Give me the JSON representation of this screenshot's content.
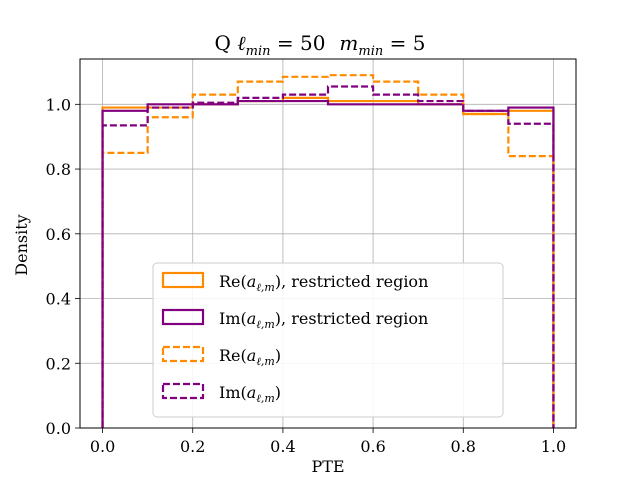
{
  "chart_data": {
    "type": "histogram",
    "title": "Q ℓ_min = 50   m_min = 5",
    "title_parts": {
      "prefix": "Q ",
      "l_symbol": "ℓ",
      "m_symbol": "m",
      "sub": "min",
      "eq": " = ",
      "l_value": "50",
      "m_value": "5"
    },
    "xlabel": "PTE",
    "ylabel": "Density",
    "xlim": [
      -0.05,
      1.05
    ],
    "ylim": [
      0.0,
      1.14
    ],
    "xticks": [
      0.0,
      0.2,
      0.4,
      0.6,
      0.8,
      1.0
    ],
    "xtick_labels": [
      "0.0",
      "0.2",
      "0.4",
      "0.6",
      "0.8",
      "1.0"
    ],
    "yticks": [
      0.0,
      0.2,
      0.4,
      0.6,
      0.8,
      1.0
    ],
    "ytick_labels": [
      "0.0",
      "0.2",
      "0.4",
      "0.6",
      "0.8",
      "1.0"
    ],
    "grid": true,
    "bin_edges": [
      0.0,
      0.1,
      0.2,
      0.3,
      0.4,
      0.5,
      0.6,
      0.7,
      0.8,
      0.9,
      1.0
    ],
    "legend_position": "lower center",
    "series": [
      {
        "name": "Re(a_ℓ,m), restricted region",
        "label_prefix": "Re",
        "label_a": "a",
        "label_sub": "ℓ,m",
        "label_suffix": ", restricted region",
        "color": "#ff8c00",
        "style": "solid",
        "values": [
          0.99,
          0.99,
          1.0,
          1.01,
          1.02,
          1.01,
          1.01,
          1.0,
          0.97,
          0.98
        ]
      },
      {
        "name": "Im(a_ℓ,m), restricted region",
        "label_prefix": "Im",
        "label_a": "a",
        "label_sub": "ℓ,m",
        "label_suffix": ", restricted region",
        "color": "#800080",
        "style": "solid",
        "values": [
          0.98,
          1.0,
          1.0,
          1.01,
          1.01,
          1.0,
          1.0,
          1.0,
          0.98,
          0.99
        ]
      },
      {
        "name": "Re(a_ℓ,m)",
        "label_prefix": "Re",
        "label_a": "a",
        "label_sub": "ℓ,m",
        "label_suffix": "",
        "color": "#ff8c00",
        "style": "dashed",
        "values": [
          0.85,
          0.96,
          1.03,
          1.07,
          1.085,
          1.09,
          1.07,
          1.03,
          0.97,
          0.84
        ]
      },
      {
        "name": "Im(a_ℓ,m)",
        "label_prefix": "Im",
        "label_a": "a",
        "label_sub": "ℓ,m",
        "label_suffix": "",
        "color": "#800080",
        "style": "dashed",
        "values": [
          0.935,
          0.99,
          1.005,
          1.02,
          1.03,
          1.055,
          1.03,
          1.01,
          0.98,
          0.94
        ]
      }
    ]
  }
}
